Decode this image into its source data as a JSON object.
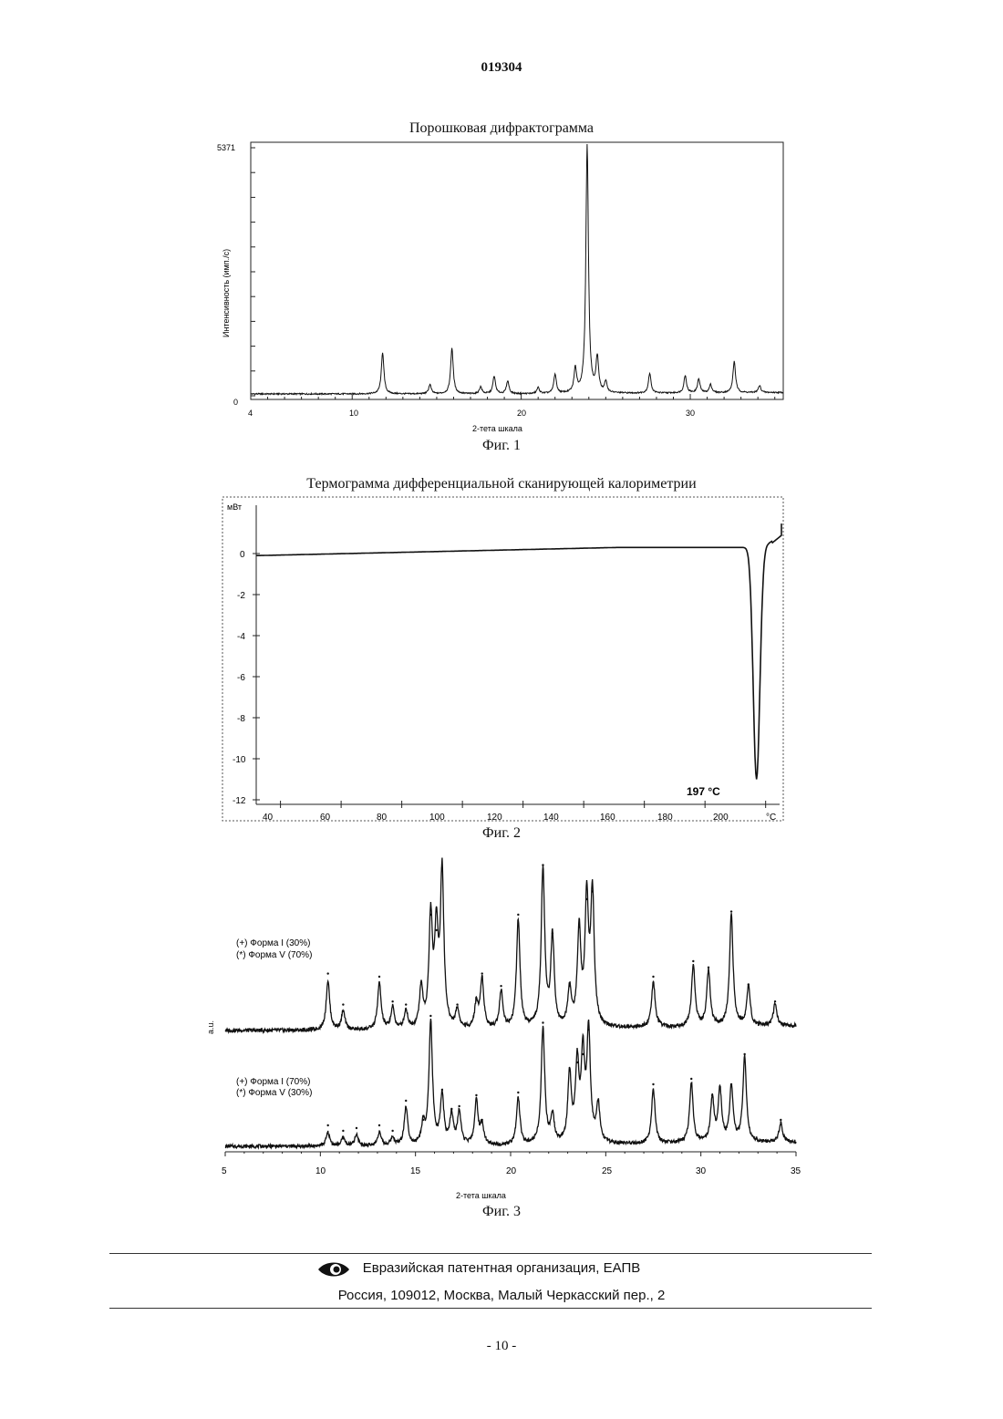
{
  "header": {
    "doc_number": "019304"
  },
  "figures": {
    "fig1": {
      "title": "Порошковая дифрактограмма",
      "caption": "Фиг. 1",
      "ylabel": "Интенсивность (имп./с)",
      "xlabel": "2-тета шкала",
      "ymax_label": "5371",
      "y0_label": "0",
      "xticks": [
        "4",
        "10",
        "20",
        "30"
      ]
    },
    "fig2": {
      "title": "Термограмма дифференциальной сканирующей калориметрии",
      "caption": "Фиг. 2",
      "yunit": "мВт",
      "xunit": "°C",
      "yticks": [
        "0",
        "-2",
        "-4",
        "-6",
        "-8",
        "-10",
        "-12"
      ],
      "xticks": [
        "40",
        "60",
        "80",
        "100",
        "120",
        "140",
        "160",
        "180",
        "200"
      ],
      "peak_label": "197 °C"
    },
    "fig3": {
      "caption": "Фиг. 3",
      "ylabel": "a.u.",
      "xlabel": "2-тета шкала",
      "xticks": [
        "5",
        "10",
        "15",
        "20",
        "25",
        "30",
        "35"
      ],
      "legend_top": [
        "(+) Форма I (30%)",
        "(*) Форма V (70%)"
      ],
      "legend_bottom": [
        "(+) Форма I (70%)",
        "(*) Форма V (30%)"
      ]
    }
  },
  "chart_data": [
    {
      "type": "line",
      "xlabel": "2-тета шкала",
      "ylabel": "Интенсивность (имп./с)",
      "xlim": [
        4,
        35.5
      ],
      "ylim": [
        0,
        5371
      ],
      "peaks": [
        {
          "x": 11.8,
          "y": 900
        },
        {
          "x": 14.6,
          "y": 200
        },
        {
          "x": 15.9,
          "y": 1000
        },
        {
          "x": 17.6,
          "y": 150
        },
        {
          "x": 18.4,
          "y": 380
        },
        {
          "x": 19.2,
          "y": 280
        },
        {
          "x": 21.0,
          "y": 130
        },
        {
          "x": 22.0,
          "y": 420
        },
        {
          "x": 23.2,
          "y": 520
        },
        {
          "x": 23.9,
          "y": 5371
        },
        {
          "x": 24.5,
          "y": 750
        },
        {
          "x": 25.0,
          "y": 230
        },
        {
          "x": 27.6,
          "y": 430
        },
        {
          "x": 29.7,
          "y": 380
        },
        {
          "x": 30.5,
          "y": 300
        },
        {
          "x": 31.2,
          "y": 180
        },
        {
          "x": 32.6,
          "y": 680
        },
        {
          "x": 34.1,
          "y": 150
        }
      ]
    },
    {
      "type": "line",
      "xlabel": "°C",
      "ylabel": "мВт",
      "xlim": [
        32,
        202.5
      ],
      "ylim": [
        -12,
        1.5
      ],
      "peak": {
        "x": 197,
        "y": -11,
        "label": "197 °C"
      },
      "baseline": [
        [
          32,
          -0.1
        ],
        [
          100,
          0.0
        ],
        [
          140,
          0.3
        ],
        [
          190,
          0.3
        ],
        [
          200,
          0.5
        ],
        [
          210,
          1.4
        ]
      ]
    },
    {
      "type": "line",
      "xlabel": "2-тета шкала",
      "ylabel": "a.u.",
      "xlim": [
        5,
        35
      ],
      "series": [
        {
          "name": "(+) Форма I (30%) (*) Форма V (70%)",
          "peaks": [
            {
              "x": 10.4,
              "y": 0.32
            },
            {
              "x": 11.2,
              "y": 0.12
            },
            {
              "x": 13.1,
              "y": 0.3
            },
            {
              "x": 13.8,
              "y": 0.14
            },
            {
              "x": 14.5,
              "y": 0.12
            },
            {
              "x": 15.3,
              "y": 0.26
            },
            {
              "x": 15.8,
              "y": 0.7
            },
            {
              "x": 16.1,
              "y": 0.6
            },
            {
              "x": 16.4,
              "y": 1.0
            },
            {
              "x": 17.2,
              "y": 0.12
            },
            {
              "x": 18.2,
              "y": 0.16
            },
            {
              "x": 18.5,
              "y": 0.32
            },
            {
              "x": 19.5,
              "y": 0.24
            },
            {
              "x": 20.4,
              "y": 0.7
            },
            {
              "x": 21.7,
              "y": 1.02
            },
            {
              "x": 22.2,
              "y": 0.58
            },
            {
              "x": 23.1,
              "y": 0.24
            },
            {
              "x": 23.6,
              "y": 0.62
            },
            {
              "x": 24.0,
              "y": 0.8
            },
            {
              "x": 24.3,
              "y": 0.85
            },
            {
              "x": 27.5,
              "y": 0.3
            },
            {
              "x": 29.6,
              "y": 0.4
            },
            {
              "x": 30.4,
              "y": 0.36
            },
            {
              "x": 31.6,
              "y": 0.72
            },
            {
              "x": 32.5,
              "y": 0.25
            },
            {
              "x": 33.9,
              "y": 0.14
            }
          ]
        },
        {
          "name": "(+) Форма I (70%) (*) Форма V (30%)",
          "peaks": [
            {
              "x": 10.4,
              "y": 0.1
            },
            {
              "x": 11.2,
              "y": 0.06
            },
            {
              "x": 11.9,
              "y": 0.08
            },
            {
              "x": 13.1,
              "y": 0.1
            },
            {
              "x": 13.8,
              "y": 0.06
            },
            {
              "x": 14.5,
              "y": 0.28
            },
            {
              "x": 15.4,
              "y": 0.14
            },
            {
              "x": 15.8,
              "y": 0.9
            },
            {
              "x": 16.4,
              "y": 0.36
            },
            {
              "x": 16.9,
              "y": 0.22
            },
            {
              "x": 17.3,
              "y": 0.24
            },
            {
              "x": 18.2,
              "y": 0.32
            },
            {
              "x": 18.5,
              "y": 0.14
            },
            {
              "x": 20.4,
              "y": 0.34
            },
            {
              "x": 21.7,
              "y": 0.85
            },
            {
              "x": 22.2,
              "y": 0.2
            },
            {
              "x": 23.1,
              "y": 0.5
            },
            {
              "x": 23.5,
              "y": 0.56
            },
            {
              "x": 23.8,
              "y": 0.62
            },
            {
              "x": 24.1,
              "y": 0.8
            },
            {
              "x": 24.6,
              "y": 0.28
            },
            {
              "x": 27.5,
              "y": 0.4
            },
            {
              "x": 29.5,
              "y": 0.44
            },
            {
              "x": 30.6,
              "y": 0.32
            },
            {
              "x": 31.0,
              "y": 0.38
            },
            {
              "x": 31.6,
              "y": 0.4
            },
            {
              "x": 32.3,
              "y": 0.62
            },
            {
              "x": 34.2,
              "y": 0.14
            }
          ]
        }
      ]
    }
  ],
  "footer": {
    "org": "Евразийская патентная организация, ЕАПВ",
    "address": "Россия, 109012, Москва, Малый Черкасский пер., 2",
    "page_number": "- 10 -"
  }
}
